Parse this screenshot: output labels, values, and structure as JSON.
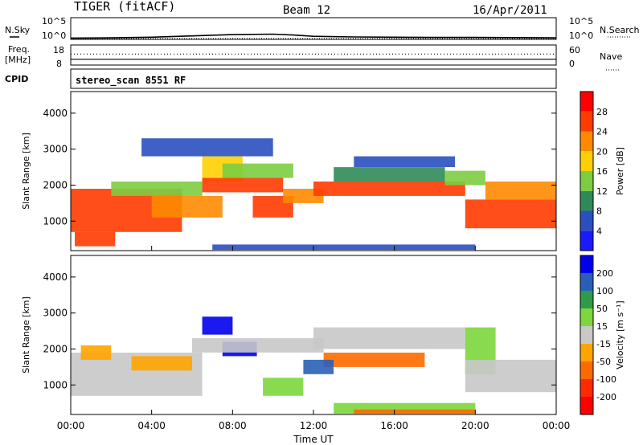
{
  "header": {
    "title": "TIGER (fitACF)",
    "beam": "Beam 12",
    "date": "16/Apr/2011"
  },
  "ticks": {
    "sky_low": "10^0",
    "sky_high": "10^5",
    "freq_low": "8",
    "freq_high": "18",
    "nave_low": "0",
    "nave_high": "60",
    "range": [
      "1000",
      "2000",
      "3000",
      "4000"
    ],
    "power_bar": [
      "4",
      "8",
      "12",
      "16",
      "20",
      "24",
      "28"
    ],
    "velocity_bar": [
      "200",
      "100",
      "50",
      "15",
      "-15",
      "-50",
      "-100",
      "-200"
    ],
    "time": [
      "00:00",
      "04:00",
      "08:00",
      "12:00",
      "16:00",
      "20:00",
      "00:00"
    ]
  },
  "labels": {
    "nsky": "N.Sky",
    "nsearch": "N.Search",
    "freq": "Freq.",
    "freq_unit": "[MHz]",
    "nave": "Nave",
    "cpid": "CPID",
    "cpid_value": "stereo_scan 8551 RF",
    "range_axis": "Slant Range [km]",
    "power_axis": "Power [dB]",
    "velocity_axis": "Velocity [m s⁻¹]",
    "time_axis": "Time UT"
  },
  "colors": {
    "power": [
      "#1a1aff",
      "#2a4fbf",
      "#2e8b57",
      "#7ccd40",
      "#ffd000",
      "#ff8a00",
      "#ff3b00",
      "#ff0000"
    ],
    "velocity": [
      "#0000ee",
      "#2a5fb8",
      "#2e9a4a",
      "#7cd63c",
      "#c8c8c8",
      "#ffa500",
      "#ff6a00",
      "#ff2a00",
      "#ff0000"
    ]
  },
  "chart_data": [
    {
      "type": "line",
      "panel": "noise",
      "series": [
        {
          "name": "N.Sky",
          "style": "solid",
          "x": [
            0,
            2,
            4,
            6,
            8,
            10,
            11,
            12,
            14,
            16,
            18,
            20,
            22,
            24
          ],
          "y": [
            0.3,
            0.35,
            0.5,
            0.8,
            1.1,
            1.2,
            1.0,
            0.7,
            0.55,
            0.5,
            0.45,
            0.45,
            0.4,
            0.35
          ]
        },
        {
          "name": "N.Search",
          "style": "dotted",
          "x": [
            0,
            4,
            8,
            12,
            16,
            20,
            24
          ],
          "y": [
            0.15,
            0.18,
            0.22,
            0.2,
            0.18,
            0.17,
            0.15
          ]
        }
      ]
    },
    {
      "type": "line",
      "panel": "frequency",
      "series": [
        {
          "name": "Freq.",
          "style": "solid",
          "x": [
            0,
            24
          ],
          "y": [
            10.9,
            10.9
          ]
        },
        {
          "name": "Nave",
          "style": "dotted",
          "x": [
            0,
            24
          ],
          "y": [
            33,
            33
          ]
        }
      ]
    },
    {
      "type": "heatmap",
      "panel": "power",
      "xlabel": "Time UT",
      "ylabel": "Slant Range [km]",
      "xlim": [
        0,
        24
      ],
      "ylim": [
        180,
        4600
      ],
      "colorbar": "Power [dB]",
      "bands": [
        {
          "t0": 0.0,
          "t1": 5.5,
          "r0": 700,
          "r1": 1900,
          "level": 6
        },
        {
          "t0": 0.2,
          "t1": 2.2,
          "r0": 300,
          "r1": 700,
          "level": 6
        },
        {
          "t0": 2.0,
          "t1": 6.5,
          "r0": 1700,
          "r1": 2100,
          "level": 3
        },
        {
          "t0": 4.0,
          "t1": 7.5,
          "r0": 1100,
          "r1": 1700,
          "level": 5
        },
        {
          "t0": 6.5,
          "t1": 8.5,
          "r0": 2100,
          "r1": 2800,
          "level": 4
        },
        {
          "t0": 6.5,
          "t1": 10.5,
          "r0": 1800,
          "r1": 2200,
          "level": 6
        },
        {
          "t0": 7.5,
          "t1": 11.0,
          "r0": 2200,
          "r1": 2600,
          "level": 3
        },
        {
          "t0": 9.0,
          "t1": 11.0,
          "r0": 1100,
          "r1": 1700,
          "level": 6
        },
        {
          "t0": 10.5,
          "t1": 12.5,
          "r0": 1500,
          "r1": 1900,
          "level": 5
        },
        {
          "t0": 12.0,
          "t1": 19.5,
          "r0": 1700,
          "r1": 2100,
          "level": 6
        },
        {
          "t0": 13.0,
          "t1": 18.5,
          "r0": 2100,
          "r1": 2500,
          "level": 2
        },
        {
          "t0": 14.0,
          "t1": 19.0,
          "r0": 2500,
          "r1": 2800,
          "level": 1
        },
        {
          "t0": 19.5,
          "t1": 24.0,
          "r0": 800,
          "r1": 1600,
          "level": 6
        },
        {
          "t0": 20.5,
          "t1": 24.0,
          "r0": 1600,
          "r1": 2100,
          "level": 5
        },
        {
          "t0": 18.5,
          "t1": 20.5,
          "r0": 2000,
          "r1": 2400,
          "level": 3
        },
        {
          "t0": 7.0,
          "t1": 20.0,
          "r0": 200,
          "r1": 350,
          "level": 1
        },
        {
          "t0": 3.5,
          "t1": 10.0,
          "r0": 2800,
          "r1": 3300,
          "level": 1
        }
      ]
    },
    {
      "type": "heatmap",
      "panel": "velocity",
      "xlabel": "Time UT",
      "ylabel": "Slant Range [km]",
      "xlim": [
        0,
        24
      ],
      "ylim": [
        180,
        4600
      ],
      "colorbar": "Velocity [m s⁻¹]",
      "bands": [
        {
          "t0": 0.0,
          "t1": 6.5,
          "r0": 700,
          "r1": 1900,
          "level": 4
        },
        {
          "t0": 0.5,
          "t1": 2.0,
          "r0": 1700,
          "r1": 2100,
          "level": 5
        },
        {
          "t0": 3.0,
          "t1": 6.0,
          "r0": 1400,
          "r1": 1800,
          "level": 5
        },
        {
          "t0": 6.5,
          "t1": 8.0,
          "r0": 2400,
          "r1": 2900,
          "level": 0
        },
        {
          "t0": 7.5,
          "t1": 9.2,
          "r0": 1800,
          "r1": 2200,
          "level": 0
        },
        {
          "t0": 6.0,
          "t1": 12.5,
          "r0": 1900,
          "r1": 2300,
          "level": 4
        },
        {
          "t0": 12.0,
          "t1": 19.5,
          "r0": 2000,
          "r1": 2600,
          "level": 4
        },
        {
          "t0": 12.5,
          "t1": 17.5,
          "r0": 1500,
          "r1": 1900,
          "level": 6
        },
        {
          "t0": 11.5,
          "t1": 13.0,
          "r0": 1300,
          "r1": 1700,
          "level": 1
        },
        {
          "t0": 9.5,
          "t1": 11.5,
          "r0": 700,
          "r1": 1200,
          "level": 3
        },
        {
          "t0": 19.5,
          "t1": 21.0,
          "r0": 1300,
          "r1": 2600,
          "level": 3
        },
        {
          "t0": 19.5,
          "t1": 24.0,
          "r0": 800,
          "r1": 1700,
          "level": 4
        },
        {
          "t0": 13.0,
          "t1": 20.0,
          "r0": 200,
          "r1": 500,
          "level": 3
        },
        {
          "t0": 14.0,
          "t1": 20.0,
          "r0": 200,
          "r1": 320,
          "level": 6
        }
      ]
    }
  ]
}
